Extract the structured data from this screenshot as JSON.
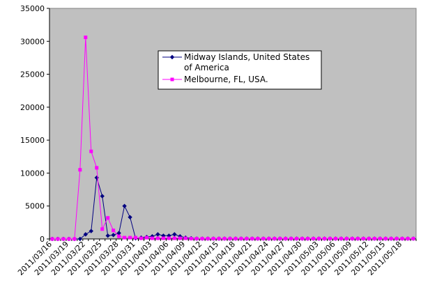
{
  "chart_data": {
    "type": "line",
    "ylim": [
      0,
      35000
    ],
    "yticks": [
      0,
      5000,
      10000,
      15000,
      20000,
      25000,
      30000,
      35000
    ],
    "x_tick_labels": [
      "2011/03/16",
      "2011/03/19",
      "2011/03/22",
      "2011/03/25",
      "2011/03/28",
      "2011/03/31",
      "2011/04/03",
      "2011/04/06",
      "2011/04/09",
      "2011/04/12",
      "2011/04/15",
      "2011/04/18",
      "2011/04/21",
      "2011/04/24",
      "2011/04/27",
      "2011/04/30",
      "2011/05/03",
      "2011/05/06",
      "2011/05/09",
      "2011/05/12",
      "2011/05/15",
      "2011/05/18"
    ],
    "x_start": "2011/03/16",
    "plot_background": "#c0c0c0",
    "grid": false,
    "legend_position": "upper-center",
    "series": [
      {
        "name": "Midway Islands, United States of America",
        "legend_lines": [
          "Midway Islands, United States",
          "of America"
        ],
        "color": "#000080",
        "marker": "diamond",
        "values": [
          0,
          0,
          0,
          0,
          0,
          0,
          700,
          1200,
          9300,
          6500,
          500,
          600,
          900,
          5000,
          3300,
          100,
          200,
          300,
          400,
          700,
          500,
          500,
          700,
          400,
          200,
          100,
          50,
          50,
          50,
          50,
          50,
          50,
          50,
          50,
          50,
          50,
          50,
          50,
          50,
          50,
          50,
          50,
          50,
          50,
          50,
          50,
          50,
          50,
          50,
          50,
          50,
          50,
          50,
          50,
          50,
          50,
          50,
          50,
          50,
          50,
          50,
          50,
          50,
          50,
          50,
          50
        ]
      },
      {
        "name": "Melbourne, FL, USA.",
        "legend_lines": [
          "Melbourne, FL, USA."
        ],
        "color": "#ff00ff",
        "marker": "square",
        "values": [
          0,
          0,
          0,
          0,
          0,
          10500,
          30600,
          13300,
          10800,
          1500,
          3200,
          1300,
          400,
          200,
          200,
          200,
          100,
          200,
          100,
          100,
          100,
          100,
          100,
          100,
          100,
          50,
          50,
          50,
          50,
          50,
          50,
          50,
          50,
          50,
          50,
          50,
          50,
          50,
          50,
          50,
          50,
          50,
          50,
          50,
          50,
          50,
          50,
          50,
          50,
          50,
          50,
          50,
          50,
          50,
          50,
          50,
          50,
          50,
          50,
          50,
          50,
          50,
          50,
          50,
          50,
          50
        ]
      }
    ]
  }
}
